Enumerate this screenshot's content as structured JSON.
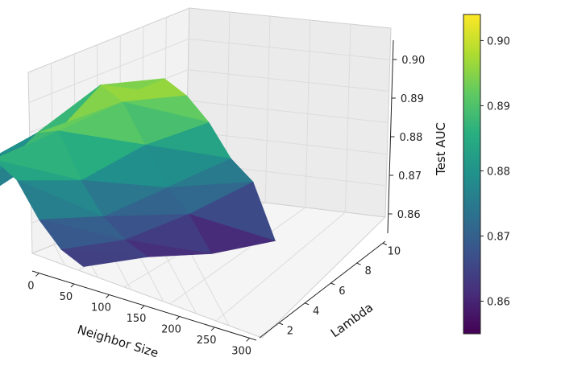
{
  "chart_data": {
    "type": "surface3d",
    "xlabel": "Neighbor Size",
    "ylabel": "Lambda",
    "zlabel": "Test AUC",
    "colorbar": {
      "colormap": "viridis",
      "range": [
        0.855,
        0.904
      ],
      "ticks": [
        "0.86",
        "0.87",
        "0.88",
        "0.89",
        "0.90"
      ],
      "tick_values": [
        0.86,
        0.87,
        0.88,
        0.89,
        0.9
      ]
    },
    "x_ticks": [
      "0",
      "50",
      "100",
      "150",
      "200",
      "250",
      "300"
    ],
    "x_tick_values": [
      0,
      50,
      100,
      150,
      200,
      250,
      300
    ],
    "y_ticks": [
      "2",
      "4",
      "6",
      "8",
      "10"
    ],
    "y_tick_values": [
      2,
      4,
      6,
      8,
      10
    ],
    "z_ticks": [
      "0.86",
      "0.87",
      "0.88",
      "0.89",
      "0.90"
    ],
    "z_tick_values": [
      0.86,
      0.87,
      0.88,
      0.89,
      0.9
    ],
    "xlim": [
      0,
      300
    ],
    "ylim": [
      1,
      10
    ],
    "zlim": [
      0.855,
      0.905
    ],
    "grid": true,
    "points": [
      {
        "x": 5,
        "y": 1,
        "z": 0.866
      },
      {
        "x": 5,
        "y": 4,
        "z": 0.874
      },
      {
        "x": 5,
        "y": 7,
        "z": 0.888
      },
      {
        "x": 5,
        "y": 10,
        "z": 0.892
      },
      {
        "x": 50,
        "y": 1,
        "z": 0.883
      },
      {
        "x": 50,
        "y": 4,
        "z": 0.889
      },
      {
        "x": 50,
        "y": 7,
        "z": 0.899
      },
      {
        "x": 50,
        "y": 10,
        "z": 0.896
      },
      {
        "x": 100,
        "y": 1,
        "z": 0.888
      },
      {
        "x": 100,
        "y": 4,
        "z": 0.892
      },
      {
        "x": 100,
        "y": 7,
        "z": 0.896
      },
      {
        "x": 100,
        "y": 10,
        "z": 0.893
      },
      {
        "x": 150,
        "y": 1,
        "z": 0.884
      },
      {
        "x": 150,
        "y": 4,
        "z": 0.879
      },
      {
        "x": 150,
        "y": 7,
        "z": 0.885
      },
      {
        "x": 150,
        "y": 10,
        "z": 0.887
      },
      {
        "x": 200,
        "y": 1,
        "z": 0.874
      },
      {
        "x": 200,
        "y": 4,
        "z": 0.87
      },
      {
        "x": 200,
        "y": 7,
        "z": 0.874
      },
      {
        "x": 200,
        "y": 10,
        "z": 0.878
      },
      {
        "x": 250,
        "y": 1,
        "z": 0.867
      },
      {
        "x": 250,
        "y": 4,
        "z": 0.865
      },
      {
        "x": 250,
        "y": 7,
        "z": 0.868
      },
      {
        "x": 250,
        "y": 10,
        "z": 0.873
      },
      {
        "x": 300,
        "y": 1,
        "z": 0.864
      },
      {
        "x": 300,
        "y": 4,
        "z": 0.862
      },
      {
        "x": 300,
        "y": 7,
        "z": 0.858
      },
      {
        "x": 300,
        "y": 10,
        "z": 0.857
      }
    ]
  }
}
